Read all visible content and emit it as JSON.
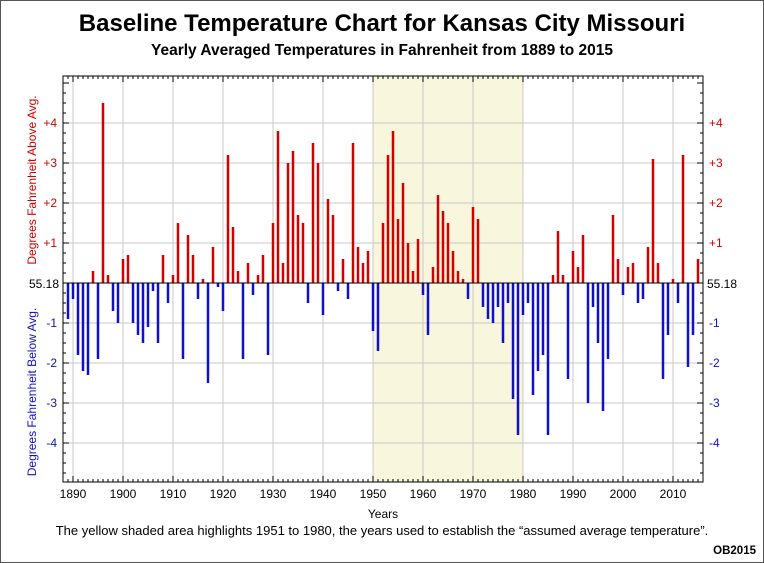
{
  "chart_data": {
    "type": "bar",
    "title": "Baseline Temperature Chart for Kansas City Missouri",
    "subtitle": "Yearly Averaged Temperatures in Fahrenheit from 1889 to 2015",
    "xlabel": "Years",
    "ylabel_above": "Degrees Fahrenheit Above Avg.",
    "ylabel_below": "Degrees Fahrenheit Below Avg.",
    "baseline_label": "55.18",
    "baseline_value": 55.18,
    "ylim": [
      -5,
      5
    ],
    "xlim": [
      1888,
      2016
    ],
    "grid": true,
    "colors": {
      "above": "#d40000",
      "below": "#1010c8",
      "highlight": "#f8f6dc"
    },
    "highlight_range": [
      1950,
      1980
    ],
    "x_ticks": [
      "1890",
      "1900",
      "1910",
      "1920",
      "1930",
      "1940",
      "1950",
      "1960",
      "1970",
      "1980",
      "1990",
      "2000",
      "2010"
    ],
    "y_ticks": [
      {
        "value": 4,
        "label": "+4"
      },
      {
        "value": 3,
        "label": "+3"
      },
      {
        "value": 2,
        "label": "+2"
      },
      {
        "value": 1,
        "label": "+1"
      },
      {
        "value": -1,
        "label": "-1"
      },
      {
        "value": -2,
        "label": "-2"
      },
      {
        "value": -3,
        "label": "-3"
      },
      {
        "value": -4,
        "label": "-4"
      }
    ],
    "x": [
      1889,
      1890,
      1891,
      1892,
      1893,
      1894,
      1895,
      1896,
      1897,
      1898,
      1899,
      1900,
      1901,
      1902,
      1903,
      1904,
      1905,
      1906,
      1907,
      1908,
      1909,
      1910,
      1911,
      1912,
      1913,
      1914,
      1915,
      1916,
      1917,
      1918,
      1919,
      1920,
      1921,
      1922,
      1923,
      1924,
      1925,
      1926,
      1927,
      1928,
      1929,
      1930,
      1931,
      1932,
      1933,
      1934,
      1935,
      1936,
      1937,
      1938,
      1939,
      1940,
      1941,
      1942,
      1943,
      1944,
      1945,
      1946,
      1947,
      1948,
      1949,
      1950,
      1951,
      1952,
      1953,
      1954,
      1955,
      1956,
      1957,
      1958,
      1959,
      1960,
      1961,
      1962,
      1963,
      1964,
      1965,
      1966,
      1967,
      1968,
      1969,
      1970,
      1971,
      1972,
      1973,
      1974,
      1975,
      1976,
      1977,
      1978,
      1979,
      1980,
      1981,
      1982,
      1983,
      1984,
      1985,
      1986,
      1987,
      1988,
      1989,
      1990,
      1991,
      1992,
      1993,
      1994,
      1995,
      1996,
      1997,
      1998,
      1999,
      2000,
      2001,
      2002,
      2003,
      2004,
      2005,
      2006,
      2007,
      2008,
      2009,
      2010,
      2011,
      2012,
      2013,
      2014,
      2015
    ],
    "values": [
      -0.9,
      -0.4,
      -1.8,
      -2.2,
      -2.3,
      0.3,
      -1.9,
      4.5,
      0.2,
      -0.7,
      -1.0,
      0.6,
      0.7,
      -1.0,
      -1.3,
      -1.5,
      -1.1,
      -0.2,
      -1.5,
      0.7,
      -0.5,
      0.2,
      1.5,
      -1.9,
      1.2,
      0.7,
      -0.4,
      0.1,
      -2.5,
      0.9,
      -0.1,
      -0.7,
      3.2,
      1.4,
      0.3,
      -1.9,
      0.5,
      -0.3,
      0.2,
      0.7,
      -1.8,
      1.5,
      3.8,
      0.5,
      3.0,
      3.3,
      1.7,
      1.5,
      -0.5,
      3.5,
      3.0,
      -0.8,
      2.1,
      1.7,
      -0.2,
      0.6,
      -0.4,
      3.5,
      0.9,
      0.5,
      0.8,
      -1.2,
      -1.7,
      1.5,
      3.2,
      3.8,
      1.6,
      2.5,
      1.0,
      0.3,
      1.1,
      -0.3,
      -1.3,
      0.4,
      2.2,
      1.8,
      1.5,
      0.8,
      0.3,
      0.1,
      -0.4,
      1.9,
      1.6,
      -0.6,
      -0.9,
      -1.0,
      -0.6,
      -1.5,
      -0.5,
      -2.9,
      -3.8,
      -0.8,
      -0.5,
      -2.8,
      -2.2,
      -1.8,
      -3.8,
      0.2,
      1.3,
      0.2,
      -2.4,
      0.8,
      0.4,
      1.2,
      -3.0,
      -0.6,
      -1.5,
      -3.2,
      -1.9,
      1.7,
      0.6,
      -0.3,
      0.4,
      0.5,
      -0.5,
      -0.4,
      0.9,
      3.1,
      0.5,
      -2.4,
      -1.3,
      0.1,
      -0.5,
      3.2,
      -2.1,
      -1.3,
      0.6
    ]
  },
  "caption": "The yellow shaded area highlights 1951 to 1980, the years used to establish the “assumed average temperature”.",
  "credit": "OB2015"
}
